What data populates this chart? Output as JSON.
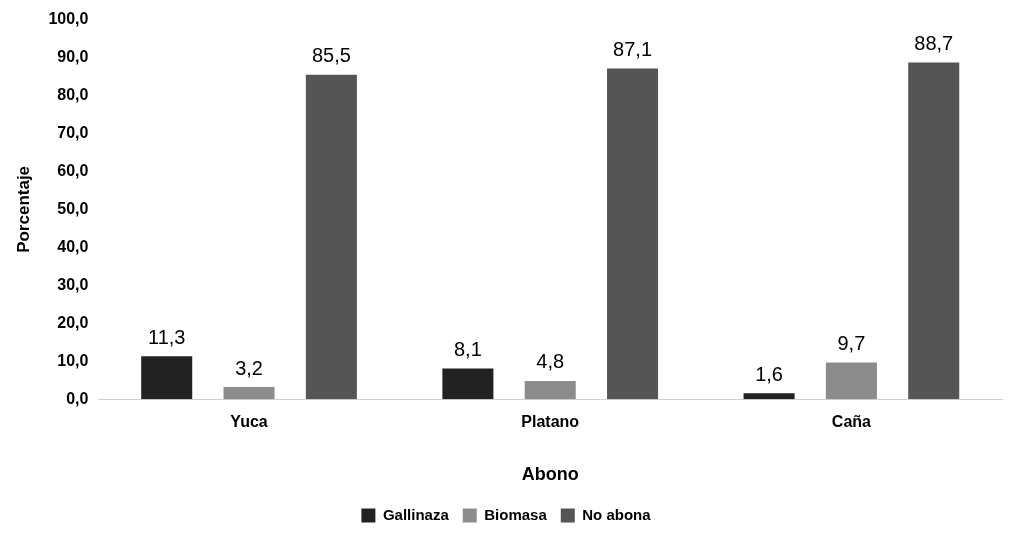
{
  "chart_data": {
    "type": "bar",
    "xlabel": "Abono",
    "ylabel": "Porcentaje",
    "categories": [
      "Yuca",
      "Platano",
      "Caña"
    ],
    "series": [
      {
        "name": "Gallinaza",
        "color": "#222222",
        "values": [
          11.3,
          8.1,
          1.6
        ],
        "value_labels": [
          "11,3",
          "8,1",
          "1,6"
        ]
      },
      {
        "name": "Biomasa",
        "color": "#8c8c8c",
        "values": [
          3.2,
          4.8,
          9.7
        ],
        "value_labels": [
          "3,2",
          "4,8",
          "9,7"
        ]
      },
      {
        "name": "No abona",
        "color": "#555555",
        "values": [
          85.5,
          87.1,
          88.7
        ],
        "value_labels": [
          "85,5",
          "87,1",
          "88,7"
        ]
      }
    ],
    "ylim": [
      0,
      100
    ],
    "yticks": [
      {
        "value": 0,
        "label": "0,0"
      },
      {
        "value": 10,
        "label": "10,0"
      },
      {
        "value": 20,
        "label": "20,0"
      },
      {
        "value": 30,
        "label": "30,0"
      },
      {
        "value": 40,
        "label": "40,0"
      },
      {
        "value": 50,
        "label": "50,0"
      },
      {
        "value": 60,
        "label": "60,0"
      },
      {
        "value": 70,
        "label": "70,0"
      },
      {
        "value": 80,
        "label": "80,0"
      },
      {
        "value": 90,
        "label": "90,0"
      },
      {
        "value": 100,
        "label": "100,0"
      }
    ],
    "grid": false,
    "legend": "bottom"
  }
}
